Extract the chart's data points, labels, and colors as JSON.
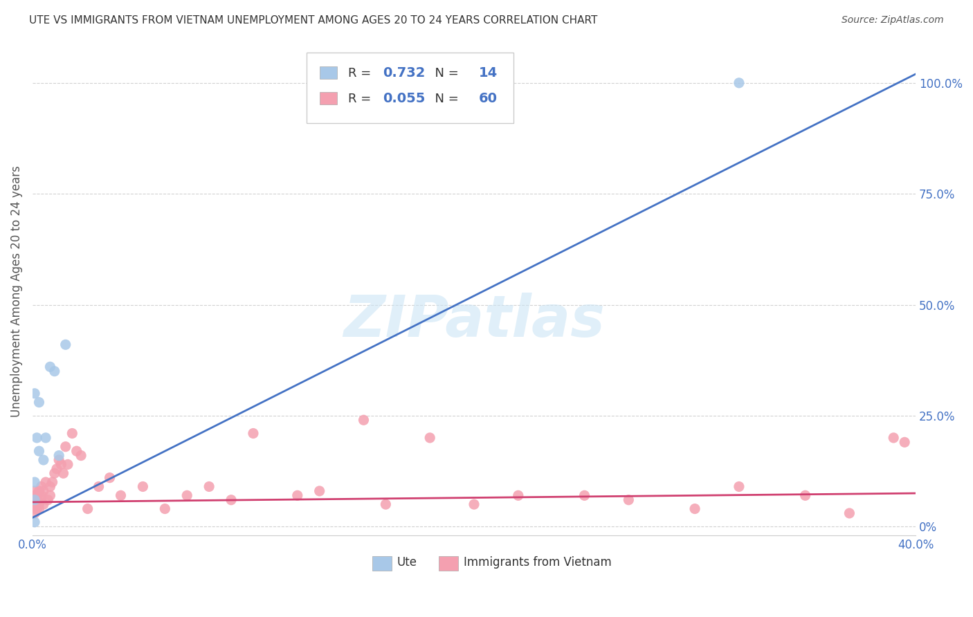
{
  "title": "UTE VS IMMIGRANTS FROM VIETNAM UNEMPLOYMENT AMONG AGES 20 TO 24 YEARS CORRELATION CHART",
  "source": "Source: ZipAtlas.com",
  "ylabel": "Unemployment Among Ages 20 to 24 years",
  "ytick_vals": [
    0.0,
    0.25,
    0.5,
    0.75,
    1.0
  ],
  "ytick_labels": [
    "0%",
    "25.0%",
    "50.0%",
    "75.0%",
    "100.0%"
  ],
  "xlim": [
    0.0,
    0.4
  ],
  "ylim": [
    -0.02,
    1.08
  ],
  "watermark": "ZIPatlas",
  "legend_ute_R": "0.732",
  "legend_ute_N": "14",
  "legend_viet_R": "0.055",
  "legend_viet_N": "60",
  "ute_color": "#a8c8e8",
  "viet_color": "#f4a0b0",
  "ute_line_color": "#4472c4",
  "viet_line_color": "#d04070",
  "bg_color": "#ffffff",
  "grid_color": "#cccccc",
  "ute_line_x": [
    0.0,
    0.4
  ],
  "ute_line_y": [
    0.02,
    1.02
  ],
  "viet_line_x": [
    0.0,
    0.4
  ],
  "viet_line_y": [
    0.055,
    0.075
  ],
  "ute_scatter_x": [
    0.001,
    0.001,
    0.001,
    0.002,
    0.003,
    0.003,
    0.005,
    0.006,
    0.008,
    0.01,
    0.012,
    0.015,
    0.001,
    0.32
  ],
  "ute_scatter_y": [
    0.3,
    0.1,
    0.06,
    0.2,
    0.17,
    0.28,
    0.15,
    0.2,
    0.36,
    0.35,
    0.16,
    0.41,
    0.01,
    1.0
  ],
  "viet_scatter_x": [
    0.001,
    0.001,
    0.001,
    0.001,
    0.001,
    0.001,
    0.001,
    0.001,
    0.002,
    0.002,
    0.002,
    0.002,
    0.003,
    0.003,
    0.003,
    0.004,
    0.004,
    0.004,
    0.005,
    0.005,
    0.006,
    0.007,
    0.008,
    0.008,
    0.009,
    0.01,
    0.011,
    0.012,
    0.013,
    0.014,
    0.015,
    0.016,
    0.018,
    0.02,
    0.022,
    0.025,
    0.03,
    0.035,
    0.04,
    0.05,
    0.06,
    0.07,
    0.08,
    0.09,
    0.1,
    0.12,
    0.13,
    0.15,
    0.16,
    0.18,
    0.2,
    0.22,
    0.25,
    0.27,
    0.3,
    0.32,
    0.35,
    0.37,
    0.39,
    0.395
  ],
  "viet_scatter_y": [
    0.05,
    0.04,
    0.06,
    0.07,
    0.08,
    0.03,
    0.05,
    0.06,
    0.05,
    0.07,
    0.04,
    0.06,
    0.05,
    0.08,
    0.04,
    0.06,
    0.09,
    0.07,
    0.05,
    0.08,
    0.1,
    0.06,
    0.09,
    0.07,
    0.1,
    0.12,
    0.13,
    0.15,
    0.14,
    0.12,
    0.18,
    0.14,
    0.21,
    0.17,
    0.16,
    0.04,
    0.09,
    0.11,
    0.07,
    0.09,
    0.04,
    0.07,
    0.09,
    0.06,
    0.21,
    0.07,
    0.08,
    0.24,
    0.05,
    0.2,
    0.05,
    0.07,
    0.07,
    0.06,
    0.04,
    0.09,
    0.07,
    0.03,
    0.2,
    0.19
  ]
}
